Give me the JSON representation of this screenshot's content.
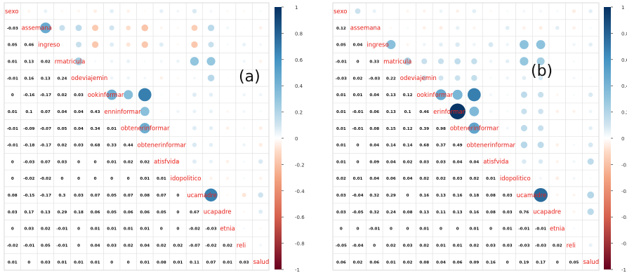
{
  "chart_data": [
    {
      "type": "heatmap",
      "panel_label": "(a)",
      "variables": [
        "sexo",
        "assemana",
        "ingreso",
        "rmatricula",
        "odeviajemin",
        "ookinformar",
        "enninformar",
        "obtenerinformar",
        "obtenerinformar",
        "atisfvida",
        "idopolitico",
        "ucamadre",
        "ucapadre",
        "etnia",
        "reli",
        "salud"
      ],
      "lower_values": [
        [],
        [
          -0.03
        ],
        [
          0.05,
          0.46
        ],
        [
          0.01,
          0.13,
          0.02
        ],
        [
          -0.01,
          0.16,
          0.13,
          0.24
        ],
        [
          0,
          -0.16,
          -0.17,
          0.02,
          0.03
        ],
        [
          0.01,
          0.1,
          0.07,
          0.04,
          0.04,
          0.43
        ],
        [
          -0.01,
          -0.09,
          -0.07,
          0.05,
          0.04,
          0.34,
          0.01
        ],
        [
          -0.01,
          -0.18,
          -0.17,
          0.02,
          0.03,
          0.68,
          0.33,
          0.44
        ],
        [
          0,
          -0.03,
          0.07,
          0.03,
          0,
          0,
          0.01,
          0.02,
          0.02
        ],
        [
          0,
          -0.02,
          -0.02,
          0,
          0,
          0,
          0,
          0,
          0.01,
          0.01
        ],
        [
          0.08,
          -0.15,
          -0.17,
          0.3,
          0.03,
          0.07,
          0.05,
          0.07,
          0.08,
          0.07,
          0
        ],
        [
          0.03,
          0.17,
          0.13,
          0.29,
          0.18,
          0.06,
          0.05,
          0.06,
          0.06,
          0.05,
          0,
          0.67
        ],
        [
          0,
          0.03,
          0.02,
          -0.01,
          0,
          0.01,
          0.01,
          0.01,
          0.01,
          0,
          0,
          -0.02,
          -0.03
        ],
        [
          -0.02,
          -0.01,
          0.05,
          -0.01,
          0,
          0.04,
          0.03,
          0.02,
          0.04,
          0.02,
          0.02,
          -0.07,
          -0.02,
          0.02
        ],
        [
          0.01,
          0,
          0.03,
          0.01,
          0.01,
          0.01,
          0,
          0,
          0.01,
          0.08,
          0.01,
          0.11,
          0.07,
          0.01,
          0.03
        ]
      ],
      "colorbar": {
        "ticks": [
          1,
          0.8,
          0.6,
          0.4,
          0.2,
          0,
          -0.2,
          -0.4,
          -0.6,
          -0.8,
          -1
        ]
      }
    },
    {
      "type": "heatmap",
      "panel_label": "(b)",
      "variables": [
        "sexo",
        "assemana",
        "ingreso",
        "matricula",
        "odeviajemin",
        "ookinformar",
        "erinformar",
        "obtenerinformar",
        "obtenerinformar",
        "atisfvida",
        "idopolitico",
        "ucamadre",
        "ucapadre",
        "etnia",
        "reli",
        "salud"
      ],
      "lower_values": [
        [],
        [
          0.12
        ],
        [
          0.05,
          0.04
        ],
        [
          -0.01,
          0,
          0.33
        ],
        [
          -0.03,
          0.02,
          -0.03,
          0.22
        ],
        [
          0.01,
          0.01,
          0.04,
          0.13,
          0.12
        ],
        [
          0.01,
          -0.01,
          0.06,
          0.13,
          0.1,
          0.46
        ],
        [
          0.01,
          -0.01,
          0.08,
          0.15,
          0.12,
          0.39,
          0.98
        ],
        [
          0.01,
          0,
          0.04,
          0.14,
          0.14,
          0.68,
          0.37,
          0.49
        ],
        [
          0.01,
          0,
          0.09,
          0.04,
          0.02,
          0.03,
          0.03,
          0.04,
          0.04
        ],
        [
          0.02,
          0.01,
          0.04,
          0.06,
          0.04,
          0.02,
          0.02,
          0.03,
          0.02,
          0.01
        ],
        [
          0.03,
          -0.04,
          0.32,
          0.29,
          0,
          0.16,
          0.13,
          0.16,
          0.18,
          0.08,
          0.03
        ],
        [
          0.03,
          -0.05,
          0.32,
          0.24,
          0.08,
          0.13,
          0.11,
          0.13,
          0.16,
          0.08,
          0.03,
          0.76
        ],
        [
          0,
          0,
          -0.01,
          0,
          0,
          0.01,
          0,
          0,
          0.01,
          0,
          0.01,
          -0.01,
          -0.01
        ],
        [
          -0.05,
          -0.04,
          0,
          0.02,
          0.03,
          0.02,
          0.01,
          0.01,
          0.02,
          0.03,
          0.03,
          -0.03,
          -0.03,
          0.02
        ],
        [
          0.06,
          0.02,
          0.06,
          0.01,
          0.02,
          0.08,
          0.04,
          0.06,
          0.09,
          0.16,
          0,
          0.19,
          0.17,
          0,
          0.05
        ]
      ],
      "colorbar": {
        "ticks": [
          1,
          0.8,
          0.6,
          0.4,
          0.2,
          0,
          -0.2,
          -0.4,
          -0.6,
          -0.8,
          -1
        ]
      }
    }
  ]
}
